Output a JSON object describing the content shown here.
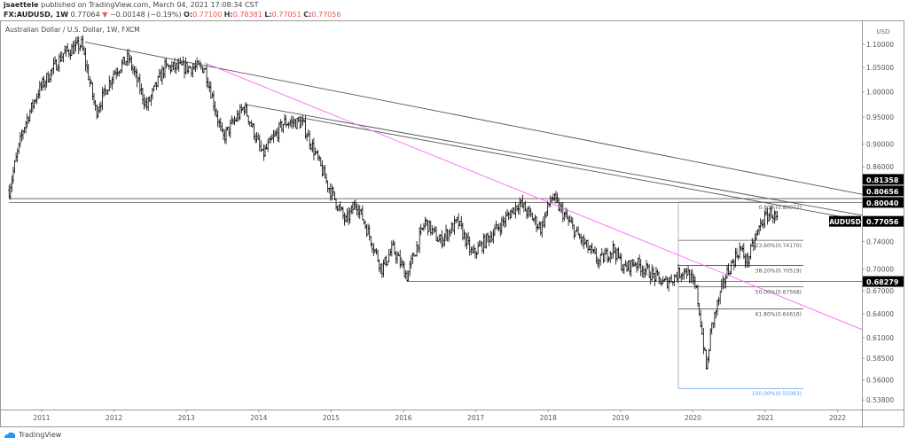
{
  "header": {
    "author": "jsaettele",
    "published": "published on TradingView.com, March 04, 2021 17:08:34 CST",
    "symbol": "FX:AUDUSD, 1W",
    "last": "0.77064",
    "change": "−0.00148 (−0.19%)",
    "open_label": "O:",
    "open": "0.77100",
    "high_label": "H:",
    "high": "0.78381",
    "low_label": "L:",
    "low": "0.77051",
    "close_label": "C:",
    "close": "0.77056",
    "direction_icon": "triangle-down-icon"
  },
  "legend_title": "Australian Dollar / U.S. Dollar, 1W, FXCM",
  "currency": "USD",
  "logo": "TradingView",
  "colors": {
    "down": "#ef5350",
    "candles": "#000000",
    "trendline": "#555555",
    "magenta_line": "#ff66ff",
    "fib_100": "#5b9cf6",
    "logo": "#2196f3"
  },
  "chart_data": {
    "type": "ohlc",
    "scale": "log",
    "ylim": [
      0.535,
      1.14
    ],
    "xlim": [
      2010.55,
      2022.95
    ],
    "x_ticks": [
      "2011",
      "2012",
      "2013",
      "2014",
      "2015",
      "2016",
      "2017",
      "2018",
      "2019",
      "2020",
      "2021",
      "2022"
    ],
    "y_ticks": [
      "1.10000",
      "1.05000",
      "1.00000",
      "0.95000",
      "0.90000",
      "0.86000",
      "0.74000",
      "0.70000",
      "0.67000",
      "0.64000",
      "0.61000",
      "0.58500",
      "0.56000",
      "0.53800"
    ],
    "price_path": [
      [
        2010.55,
        0.82
      ],
      [
        2010.75,
        0.93
      ],
      [
        2010.95,
        1.0
      ],
      [
        2011.3,
        1.08
      ],
      [
        2011.55,
        1.1
      ],
      [
        2011.75,
        0.96
      ],
      [
        2012.0,
        1.04
      ],
      [
        2012.2,
        1.07
      ],
      [
        2012.45,
        0.97
      ],
      [
        2012.7,
        1.05
      ],
      [
        2013.0,
        1.05
      ],
      [
        2013.25,
        1.05
      ],
      [
        2013.5,
        0.91
      ],
      [
        2013.8,
        0.97
      ],
      [
        2014.05,
        0.88
      ],
      [
        2014.35,
        0.94
      ],
      [
        2014.6,
        0.94
      ],
      [
        2014.95,
        0.83
      ],
      [
        2015.2,
        0.77
      ],
      [
        2015.35,
        0.8
      ],
      [
        2015.7,
        0.7
      ],
      [
        2015.85,
        0.73
      ],
      [
        2016.05,
        0.69
      ],
      [
        2016.3,
        0.77
      ],
      [
        2016.5,
        0.74
      ],
      [
        2016.75,
        0.77
      ],
      [
        2016.95,
        0.72
      ],
      [
        2017.3,
        0.76
      ],
      [
        2017.6,
        0.8
      ],
      [
        2017.9,
        0.76
      ],
      [
        2018.05,
        0.81
      ],
      [
        2018.4,
        0.75
      ],
      [
        2018.7,
        0.71
      ],
      [
        2018.9,
        0.73
      ],
      [
        2019.05,
        0.7
      ],
      [
        2019.2,
        0.71
      ],
      [
        2019.6,
        0.68
      ],
      [
        2019.9,
        0.7
      ],
      [
        2020.05,
        0.67
      ],
      [
        2020.19,
        0.57
      ],
      [
        2020.25,
        0.62
      ],
      [
        2020.45,
        0.69
      ],
      [
        2020.65,
        0.73
      ],
      [
        2020.75,
        0.71
      ],
      [
        2020.95,
        0.77
      ],
      [
        2021.08,
        0.785
      ],
      [
        2021.17,
        0.7706
      ]
    ],
    "trendlines": [
      {
        "from": [
          2011.6,
          1.105
        ],
        "to": [
          2022.95,
          0.81358
        ]
      },
      {
        "from": [
          2013.8,
          0.975
        ],
        "to": [
          2022.55,
          0.78
        ]
      },
      {
        "from": [
          2014.55,
          0.95
        ],
        "to": [
          2022.55,
          0.772
        ]
      }
    ],
    "magenta_line": {
      "from": [
        2013.25,
        1.06
      ],
      "to": [
        2022.95,
        0.62
      ]
    },
    "horizontal_levels": [
      {
        "value": 0.80656,
        "from": 2010.55
      },
      {
        "value": 0.8004,
        "from": 2010.55
      },
      {
        "value": 0.68279,
        "from": 2016.05
      }
    ],
    "fibonacci": [
      {
        "label": "0.00%(0.80072)",
        "value": 0.80072
      },
      {
        "label": "23.60%(0.74170)",
        "value": 0.7417
      },
      {
        "label": "38.20%(0.70519)",
        "value": 0.70519
      },
      {
        "label": "50.00%(0.67568)",
        "value": 0.67568
      },
      {
        "label": "61.80%(0.64616)",
        "value": 0.64616
      },
      {
        "label": "100.00%(0.55063)",
        "value": 0.55063
      }
    ],
    "price_labels": [
      "0.81358",
      "0.80656",
      "0.80040",
      "0.77056",
      "0.68279"
    ],
    "symbol_label": "AUDUSD"
  }
}
